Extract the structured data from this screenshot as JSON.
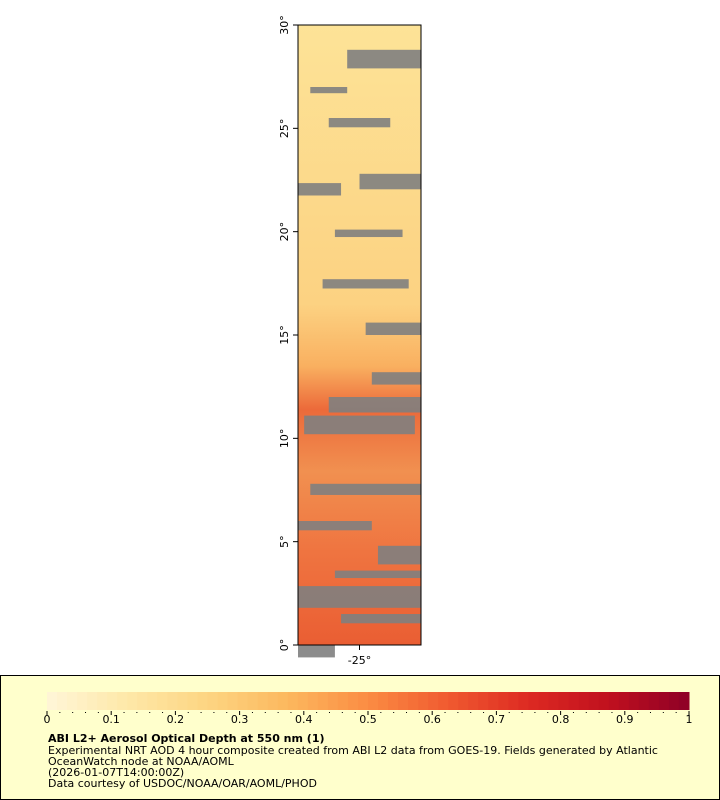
{
  "chart_data": {
    "type": "map",
    "title": "ABI L2+ Aerosol Optical Depth at 550 nm (1)",
    "description_lines": [
      "Experimental NRT AOD 4 hour composite created from ABI L2 data from GOES-19. Fields generated by Atlantic",
      "OceanWatch node at NOAA/AOML",
      "(2026-01-07T14:00:00Z)",
      "Data courtesy of USDOC/NOAA/OAR/AOML/PHOD"
    ],
    "xlim": [
      -28,
      -22
    ],
    "xticks": [
      {
        "value": -25,
        "label": "-25°"
      }
    ],
    "ylim": [
      0,
      30
    ],
    "yticks": [
      {
        "value": 0,
        "label": "0°"
      },
      {
        "value": 5,
        "label": "5°"
      },
      {
        "value": 10,
        "label": "10°"
      },
      {
        "value": 15,
        "label": "15°"
      },
      {
        "value": 20,
        "label": "20°"
      },
      {
        "value": 25,
        "label": "25°"
      },
      {
        "value": 30,
        "label": "30°"
      }
    ],
    "colorbar": {
      "lim": [
        0,
        1
      ],
      "ticks": [
        0,
        0.1,
        0.2,
        0.3,
        0.4,
        0.5,
        0.6,
        0.7,
        0.8,
        0.9,
        1
      ],
      "colors": [
        "#fff6d8",
        "#fee8a8",
        "#fdd582",
        "#fcb85e",
        "#fb8c43",
        "#f05a30",
        "#dd2a22",
        "#c0101e",
        "#8e0026"
      ]
    },
    "land_mask_color": "#808080"
  }
}
